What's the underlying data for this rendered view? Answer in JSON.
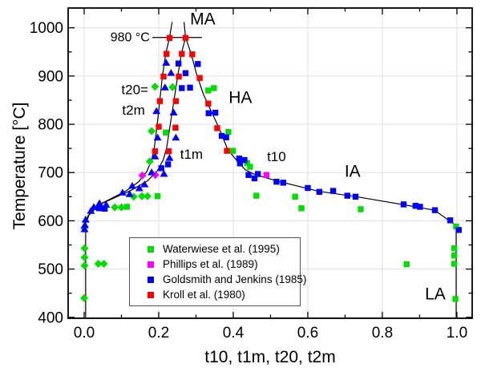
{
  "legend": {
    "entries": [
      {
        "label": "Waterwiese et al. (1995)",
        "color": "#00dd00"
      },
      {
        "label": "Phillips et al. (1989)",
        "color": "#ff00ff"
      },
      {
        "label": "Goldsmith and Jenkins (1985)",
        "color": "#0000ff"
      },
      {
        "label": "Kroll et al. (1980)",
        "color": "#ff0000"
      }
    ]
  },
  "annotations": [
    {
      "text": "MA",
      "x": 0.318,
      "t": 1019,
      "size": 21,
      "anchor": "middle"
    },
    {
      "text": "980 °C",
      "x": 0.176,
      "t": 981,
      "size": 16,
      "anchor": "end"
    },
    {
      "text": "t20=",
      "x": 0.172,
      "t": 872,
      "size": 17,
      "anchor": "end"
    },
    {
      "text": "t2m",
      "x": 0.163,
      "t": 830,
      "size": 17,
      "anchor": "end"
    },
    {
      "text": "HA",
      "x": 0.419,
      "t": 856,
      "size": 21,
      "anchor": "middle"
    },
    {
      "text": "t1m",
      "x": 0.288,
      "t": 738,
      "size": 17,
      "anchor": "middle"
    },
    {
      "text": "t10",
      "x": 0.516,
      "t": 733,
      "size": 17,
      "anchor": "middle"
    },
    {
      "text": "IA",
      "x": 0.72,
      "t": 703,
      "size": 21,
      "anchor": "middle"
    },
    {
      "text": "LA",
      "x": 0.942,
      "t": 449,
      "size": 21,
      "anchor": "middle"
    }
  ],
  "chart_data": {
    "type": "scatter",
    "title": "",
    "xlabel": "t10, t1m, t20, t2m",
    "ylabel": "Temperature [°C]",
    "xlim": [
      -0.043,
      1.041
    ],
    "ylim": [
      398,
      1041
    ],
    "grid": true,
    "legend_position": "lower-center-inside",
    "x_ticks": {
      "major": [
        0.0,
        0.2,
        0.4,
        0.6,
        0.8,
        1.0
      ],
      "labels": [
        "0.0",
        "0.2",
        "0.4",
        "0.6",
        "0.8",
        "1.0"
      ],
      "minor": [
        0.1,
        0.3,
        0.5,
        0.7,
        0.9
      ]
    },
    "y_ticks": {
      "major": [
        400,
        500,
        600,
        700,
        800,
        900,
        1000
      ],
      "labels": [
        "400",
        "500",
        "600",
        "700",
        "800",
        "900",
        "1000"
      ],
      "minor": [
        450,
        550,
        650,
        750,
        850,
        950
      ]
    },
    "lines": [
      {
        "name": "t20-t2m-curve",
        "points": [
          [
            0.236,
            1012
          ],
          [
            0.229,
            980
          ],
          [
            0.219,
            947
          ],
          [
            0.21,
            900
          ],
          [
            0.203,
            850
          ],
          [
            0.196,
            800
          ],
          [
            0.188,
            750
          ],
          [
            0.181,
            726
          ],
          [
            0.168,
            702
          ],
          [
            0.145,
            680
          ],
          [
            0.112,
            662
          ],
          [
            0.072,
            646
          ],
          [
            0.036,
            632
          ],
          [
            0.01,
            610
          ],
          [
            0.004,
            596
          ],
          [
            0.004,
            400
          ]
        ]
      },
      {
        "name": "t1m-curve",
        "points": [
          [
            0.268,
            1012
          ],
          [
            0.272,
            980
          ],
          [
            0.261,
            947
          ],
          [
            0.251,
            900
          ],
          [
            0.241,
            850
          ],
          [
            0.231,
            800
          ],
          [
            0.221,
            750
          ],
          [
            0.212,
            726
          ],
          [
            0.196,
            703
          ],
          [
            0.17,
            683
          ],
          [
            0.128,
            664
          ],
          [
            0.082,
            648
          ],
          [
            0.042,
            634
          ],
          [
            0.013,
            612
          ],
          [
            0.006,
            597
          ]
        ]
      },
      {
        "name": "t10-curve",
        "points": [
          [
            0.272,
            980
          ],
          [
            0.287,
            946
          ],
          [
            0.302,
            903
          ],
          [
            0.32,
            862
          ],
          [
            0.342,
            825
          ],
          [
            0.362,
            792
          ],
          [
            0.385,
            748
          ],
          [
            0.404,
            730
          ],
          [
            0.432,
            706
          ],
          [
            0.458,
            696
          ],
          [
            0.52,
            682
          ],
          [
            0.63,
            661
          ],
          [
            0.73,
            650
          ],
          [
            0.86,
            633
          ],
          [
            0.94,
            622
          ],
          [
            0.998,
            590
          ],
          [
            0.998,
            400
          ]
        ]
      },
      {
        "name": "isotherm-980",
        "points": [
          [
            0.183,
            980
          ],
          [
            0.316,
            980
          ]
        ]
      }
    ],
    "series": [
      {
        "name": "Waterwiese et al. (1995)",
        "color": "#00dd00",
        "points": [
          [
            0.0,
            585,
            "d"
          ],
          [
            0.001,
            543,
            "d"
          ],
          [
            0.001,
            524,
            "d"
          ],
          [
            0.001,
            507,
            "d"
          ],
          [
            0.038,
            511,
            "d"
          ],
          [
            0.053,
            511,
            "d"
          ],
          [
            0.0,
            440,
            "d"
          ],
          [
            0.082,
            628,
            "d"
          ],
          [
            0.1,
            628,
            "d"
          ],
          [
            0.115,
            629,
            "s"
          ],
          [
            0.133,
            650,
            "d"
          ],
          [
            0.155,
            651,
            "d"
          ],
          [
            0.17,
            651,
            "d"
          ],
          [
            0.197,
            651,
            "s"
          ],
          [
            0.176,
            723,
            "d"
          ],
          [
            0.181,
            786,
            "d"
          ],
          [
            0.19,
            878,
            "d"
          ],
          [
            0.237,
            877,
            "d"
          ],
          [
            0.219,
            783,
            "s"
          ],
          [
            0.333,
            870,
            "s"
          ],
          [
            0.348,
            875,
            "s"
          ],
          [
            0.387,
            784,
            "s"
          ],
          [
            0.399,
            745,
            "s"
          ],
          [
            0.437,
            720,
            "s"
          ],
          [
            0.445,
            712,
            "s"
          ],
          [
            0.462,
            652,
            "s"
          ],
          [
            0.566,
            650,
            "s"
          ],
          [
            0.583,
            626,
            "s"
          ],
          [
            0.742,
            624,
            "s"
          ],
          [
            0.865,
            510,
            "s"
          ],
          [
            0.993,
            543,
            "s"
          ],
          [
            0.993,
            528,
            "s"
          ],
          [
            0.993,
            511,
            "s"
          ],
          [
            0.996,
            438,
            "s"
          ],
          [
            0.998,
            588,
            "s"
          ]
        ]
      },
      {
        "name": "Phillips et al. (1989)",
        "color": "#ff00ff",
        "points": [
          [
            0.156,
            694,
            "d"
          ],
          [
            0.191,
            695,
            "d"
          ],
          [
            0.489,
            695,
            "s"
          ]
        ]
      },
      {
        "name": "Goldsmith and Jenkins (1985)",
        "color": "#0000ff",
        "points": [
          [
            0.253,
            926,
            "s"
          ],
          [
            0.305,
            925,
            "s"
          ],
          [
            0.272,
            906,
            "s"
          ],
          [
            0.262,
            875,
            "s"
          ],
          [
            0.284,
            876,
            "s"
          ],
          [
            0.334,
            823,
            "s"
          ],
          [
            0.352,
            824,
            "s"
          ],
          [
            0.369,
            776,
            "s"
          ],
          [
            0.381,
            773,
            "s"
          ],
          [
            0.416,
            729,
            "s"
          ],
          [
            0.418,
            719,
            "s"
          ],
          [
            0.43,
            726,
            "s"
          ],
          [
            0.441,
            695,
            "s"
          ],
          [
            0.457,
            688,
            "s"
          ],
          [
            0.466,
            697,
            "s"
          ],
          [
            0.516,
            681,
            "s"
          ],
          [
            0.534,
            679,
            "s"
          ],
          [
            0.6,
            668,
            "s"
          ],
          [
            0.631,
            660,
            "s"
          ],
          [
            0.668,
            662,
            "s"
          ],
          [
            0.706,
            652,
            "s"
          ],
          [
            0.728,
            650,
            "s"
          ],
          [
            0.857,
            634,
            "s"
          ],
          [
            0.889,
            631,
            "s"
          ],
          [
            0.901,
            629,
            "s"
          ],
          [
            0.941,
            622,
            "s"
          ],
          [
            0.982,
            601,
            "s"
          ],
          [
            1.005,
            581,
            "s"
          ],
          [
            0.225,
            717,
            "s"
          ],
          [
            0.207,
            709,
            "s"
          ],
          [
            0.04,
            626,
            "s"
          ],
          [
            0.055,
            625,
            "s"
          ],
          [
            0.22,
            928,
            "t"
          ],
          [
            0.233,
            907,
            "t"
          ],
          [
            0.217,
            877,
            "t"
          ],
          [
            0.194,
            828,
            "t"
          ],
          [
            0.24,
            825,
            "t"
          ],
          [
            0.197,
            773,
            "t"
          ],
          [
            0.246,
            773,
            "t"
          ],
          [
            0.19,
            734,
            "t"
          ],
          [
            0.229,
            731,
            "t"
          ],
          [
            0.181,
            701,
            "t"
          ],
          [
            0.214,
            698,
            "t"
          ],
          [
            0.162,
            676,
            "t"
          ],
          [
            0.148,
            668,
            "t"
          ],
          [
            0.129,
            673,
            "t"
          ],
          [
            0.103,
            659,
            "t"
          ],
          [
            0.122,
            656,
            "t"
          ],
          [
            0.059,
            634,
            "t"
          ],
          [
            0.041,
            637,
            "t"
          ],
          [
            0.026,
            629,
            "t"
          ],
          [
            0.018,
            621,
            "t"
          ],
          [
            0.004,
            603,
            "t"
          ],
          [
            0.002,
            592,
            "t"
          ],
          [
            0.001,
            583,
            "t"
          ]
        ]
      },
      {
        "name": "Kroll et al. (1980)",
        "color": "#ff0000",
        "points": [
          [
            0.229,
            979,
            "s"
          ],
          [
            0.272,
            979,
            "s"
          ],
          [
            0.221,
            946,
            "s"
          ],
          [
            0.262,
            946,
            "s"
          ],
          [
            0.29,
            945,
            "s"
          ],
          [
            0.213,
            899,
            "s"
          ],
          [
            0.254,
            899,
            "s"
          ],
          [
            0.31,
            896,
            "s"
          ],
          [
            0.203,
            848,
            "s"
          ],
          [
            0.246,
            848,
            "s"
          ],
          [
            0.333,
            843,
            "s"
          ],
          [
            0.2,
            795,
            "s"
          ],
          [
            0.245,
            793,
            "s"
          ],
          [
            0.357,
            792,
            "s"
          ],
          [
            0.19,
            744,
            "s"
          ],
          [
            0.227,
            744,
            "s"
          ],
          [
            0.383,
            745,
            "s"
          ]
        ]
      }
    ]
  }
}
